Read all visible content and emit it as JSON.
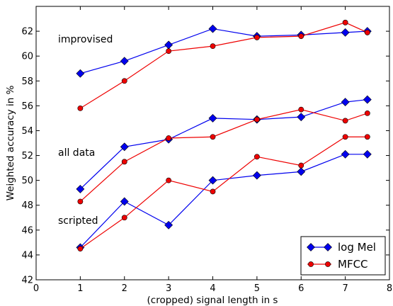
{
  "chart_data": {
    "type": "line",
    "xlabel": "(cropped) signal length in s",
    "ylabel": "Weighted accuracy in %",
    "xlim": [
      0,
      8
    ],
    "ylim": [
      42,
      64
    ],
    "xticks": [
      0,
      1,
      2,
      3,
      4,
      5,
      6,
      7,
      8
    ],
    "yticks": [
      42,
      44,
      46,
      48,
      50,
      52,
      54,
      56,
      58,
      60,
      62
    ],
    "grid": false,
    "legend_position": "lower right",
    "x": [
      1,
      2,
      3,
      4,
      5,
      6,
      7,
      7.5
    ],
    "groups": [
      {
        "label": "improvised",
        "series": [
          {
            "name": "log Mel",
            "values": [
              58.6,
              59.6,
              60.9,
              62.2,
              61.6,
              61.7,
              61.9,
              62.0
            ]
          },
          {
            "name": "MFCC",
            "values": [
              55.8,
              58.0,
              60.4,
              60.8,
              61.5,
              61.6,
              62.7,
              61.9
            ]
          }
        ]
      },
      {
        "label": "all data",
        "series": [
          {
            "name": "log Mel",
            "values": [
              49.3,
              52.7,
              53.3,
              55.0,
              54.9,
              55.1,
              56.3,
              56.5
            ]
          },
          {
            "name": "MFCC",
            "values": [
              48.3,
              51.5,
              53.4,
              53.5,
              54.9,
              55.7,
              54.8,
              55.4
            ]
          }
        ]
      },
      {
        "label": "scripted",
        "series": [
          {
            "name": "log Mel",
            "values": [
              44.6,
              48.3,
              46.4,
              50.0,
              50.4,
              50.7,
              52.1,
              52.1
            ]
          },
          {
            "name": "MFCC",
            "values": [
              44.5,
              47.0,
              50.0,
              49.1,
              51.9,
              51.2,
              53.5,
              53.5
            ]
          }
        ]
      }
    ],
    "legend": [
      {
        "name": "log Mel",
        "color": "#0000ee",
        "marker": "diamond"
      },
      {
        "name": "MFCC",
        "color": "#ee0000",
        "marker": "circle"
      }
    ]
  }
}
